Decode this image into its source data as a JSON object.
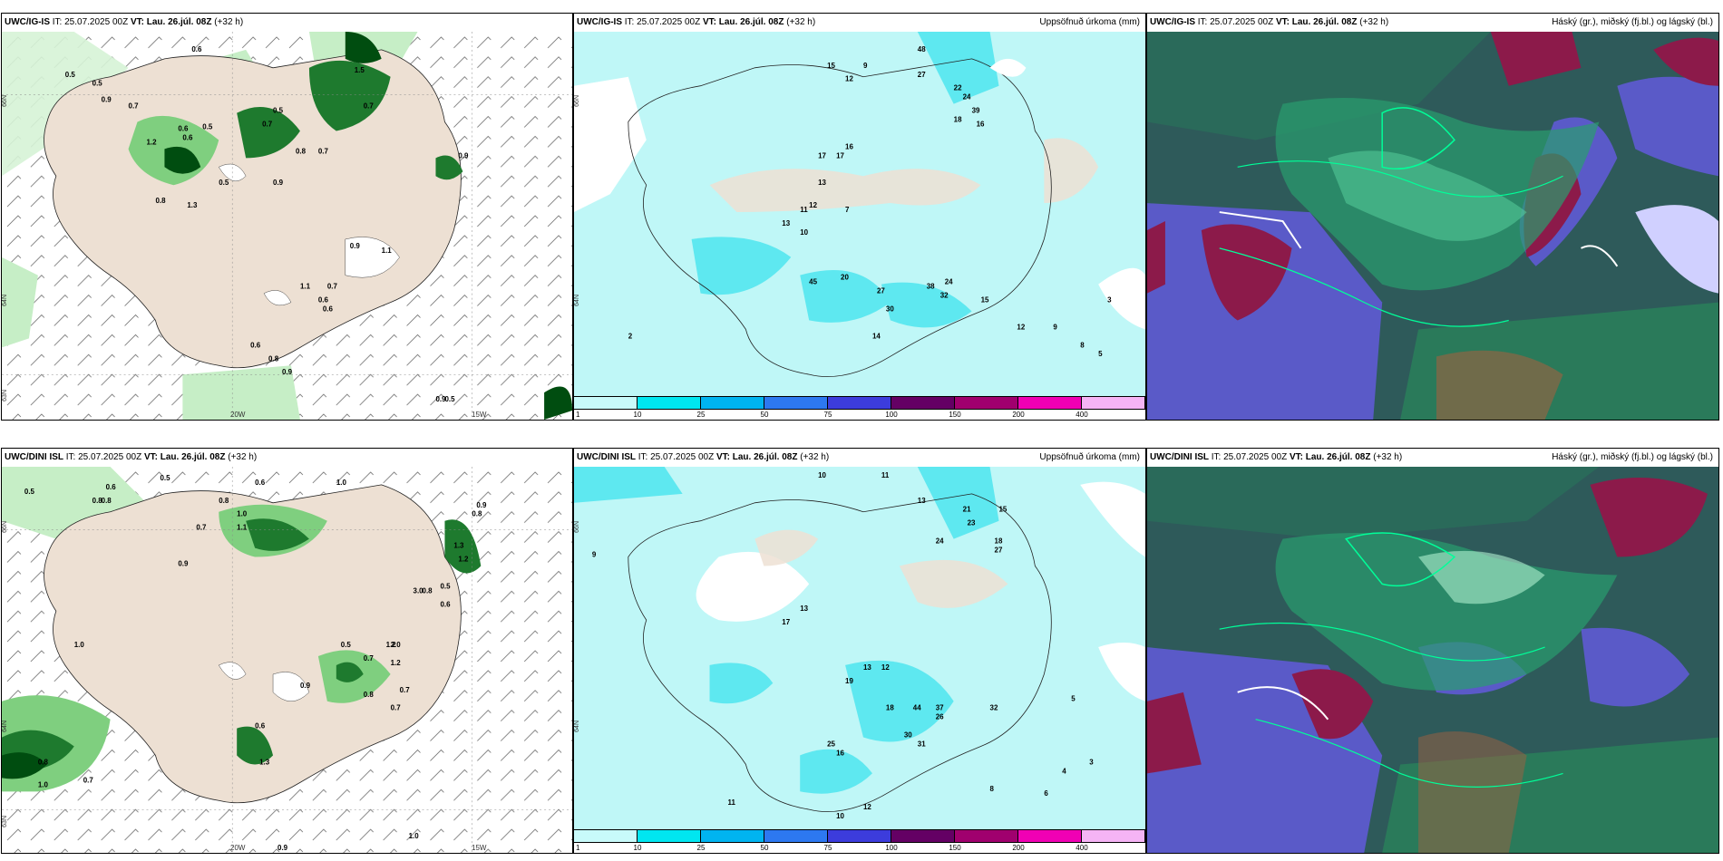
{
  "panels": [
    {
      "id": "p1",
      "model": "UWC/IG-IS",
      "it_label": "IT:",
      "it_value": "25.07.2025 00Z",
      "vt_label": "VT:",
      "vt_value": "Lau. 26.júl. 08Z",
      "lead": "(+32 h)",
      "right_title": "",
      "lon_labels": [
        "20W",
        "15W"
      ],
      "lat_labels": [
        "66N",
        "64N",
        "63N"
      ],
      "values": [
        "0.6",
        "0.5",
        "0.5",
        "0.9",
        "0.7",
        "0.6",
        "0.5",
        "0.7",
        "1.5",
        "0.5",
        "0.9",
        "0.7",
        "0.7",
        "0.8",
        "1.3",
        "1.2",
        "0.6",
        "0.8",
        "0.5",
        "1.1",
        "0.9",
        "0.6",
        "0.9",
        "1.1",
        "0.7",
        "0.6",
        "0.6",
        "0.8",
        "0.9",
        "0.9",
        "0.5"
      ]
    },
    {
      "id": "p2",
      "model": "UWC/IG-IS",
      "it_label": "IT:",
      "it_value": "25.07.2025 00Z",
      "vt_label": "VT:",
      "vt_value": "Lau. 26.júl. 08Z",
      "lead": "(+32 h)",
      "right_title": "Uppsöfnuð úrkoma (mm)",
      "lat_labels": [
        "66N",
        "64N"
      ],
      "values": [
        "48",
        "15",
        "9",
        "12",
        "27",
        "22",
        "39",
        "24",
        "16",
        "18",
        "13",
        "11",
        "13",
        "7",
        "17",
        "17",
        "12",
        "16",
        "10",
        "45",
        "20",
        "27",
        "30",
        "38",
        "24",
        "32",
        "14",
        "15",
        "12",
        "9",
        "8",
        "5",
        "3",
        "2"
      ]
    },
    {
      "id": "p3",
      "model": "UWC/IG-IS",
      "it_label": "IT:",
      "it_value": "25.07.2025 00Z",
      "vt_label": "VT:",
      "vt_value": "Lau. 26.júl. 08Z",
      "lead": "(+32 h)",
      "right_title": "Háský (gr.), miðský (fj.bl.) og lágský (bl.)"
    },
    {
      "id": "p4",
      "model": "UWC/DINI ISL",
      "it_label": "IT:",
      "it_value": "25.07.2025 00Z",
      "vt_label": "VT:",
      "vt_value": "Lau. 26.júl. 08Z",
      "lead": "(+32 h)",
      "right_title": "",
      "lon_labels": [
        "20W",
        "15W"
      ],
      "lat_labels": [
        "66N",
        "64N",
        "63N"
      ],
      "values": [
        "0.5",
        "0.6",
        "0.5",
        "0.6",
        "1.0",
        "0.8",
        "0.8",
        "1.0",
        "0.8",
        "0.7",
        "0.9",
        "1.1",
        "0.9",
        "1.3",
        "1.2",
        "0.8",
        "0.6",
        "0.5",
        "0.8",
        "3.0",
        "1.0",
        "0.5",
        "1.2",
        "2.0",
        "0.7",
        "0.9",
        "1.2",
        "0.8",
        "0.7",
        "0.7",
        "0.6",
        "1.3",
        "0.8",
        "0.7",
        "1.0",
        "1.0",
        "0.9"
      ]
    },
    {
      "id": "p5",
      "model": "UWC/DINI ISL",
      "it_label": "IT:",
      "it_value": "25.07.2025 00Z",
      "vt_label": "VT:",
      "vt_value": "Lau. 26.júl. 08Z",
      "lead": "(+32 h)",
      "right_title": "Uppsöfnuð úrkoma (mm)",
      "lat_labels": [
        "66N",
        "64N"
      ],
      "values": [
        "10",
        "11",
        "13",
        "21",
        "23",
        "15",
        "18",
        "27",
        "24",
        "13",
        "17",
        "19",
        "13",
        "12",
        "18",
        "44",
        "26",
        "30",
        "31",
        "25",
        "16",
        "37",
        "32",
        "12",
        "8",
        "6",
        "4",
        "3",
        "5",
        "9",
        "11",
        "10"
      ]
    },
    {
      "id": "p6",
      "model": "UWC/DINI ISL",
      "it_label": "IT:",
      "it_value": "25.07.2025 00Z",
      "vt_label": "VT:",
      "vt_value": "Lau. 26.júl. 08Z",
      "lead": "(+32 h)",
      "right_title": "Háský (gr.), miðský (fj.bl.) og lágský (bl.)"
    }
  ],
  "colorbar": {
    "labels": [
      "1",
      "10",
      "25",
      "50",
      "75",
      "100",
      "150",
      "200",
      "400"
    ],
    "colors": [
      "#c8fafa",
      "#00e6f0",
      "#00b4f0",
      "#2d78f0",
      "#3c3cdc",
      "#640064",
      "#a0006e",
      "#f000b4",
      "#f5b4f5"
    ]
  },
  "colors": {
    "land": "#ede0d3",
    "green_light": "#c6eec6",
    "green_mid": "#7fcf7f",
    "green_dark": "#1e7a2e",
    "green_darkest": "#004d10",
    "precip_light": "#bff7f7",
    "precip_mid": "#5ee8f0",
    "cloud_high": "#2a9d6e",
    "cloud_mid": "#5a5ac8",
    "cloud_low": "#8c1a4a"
  }
}
